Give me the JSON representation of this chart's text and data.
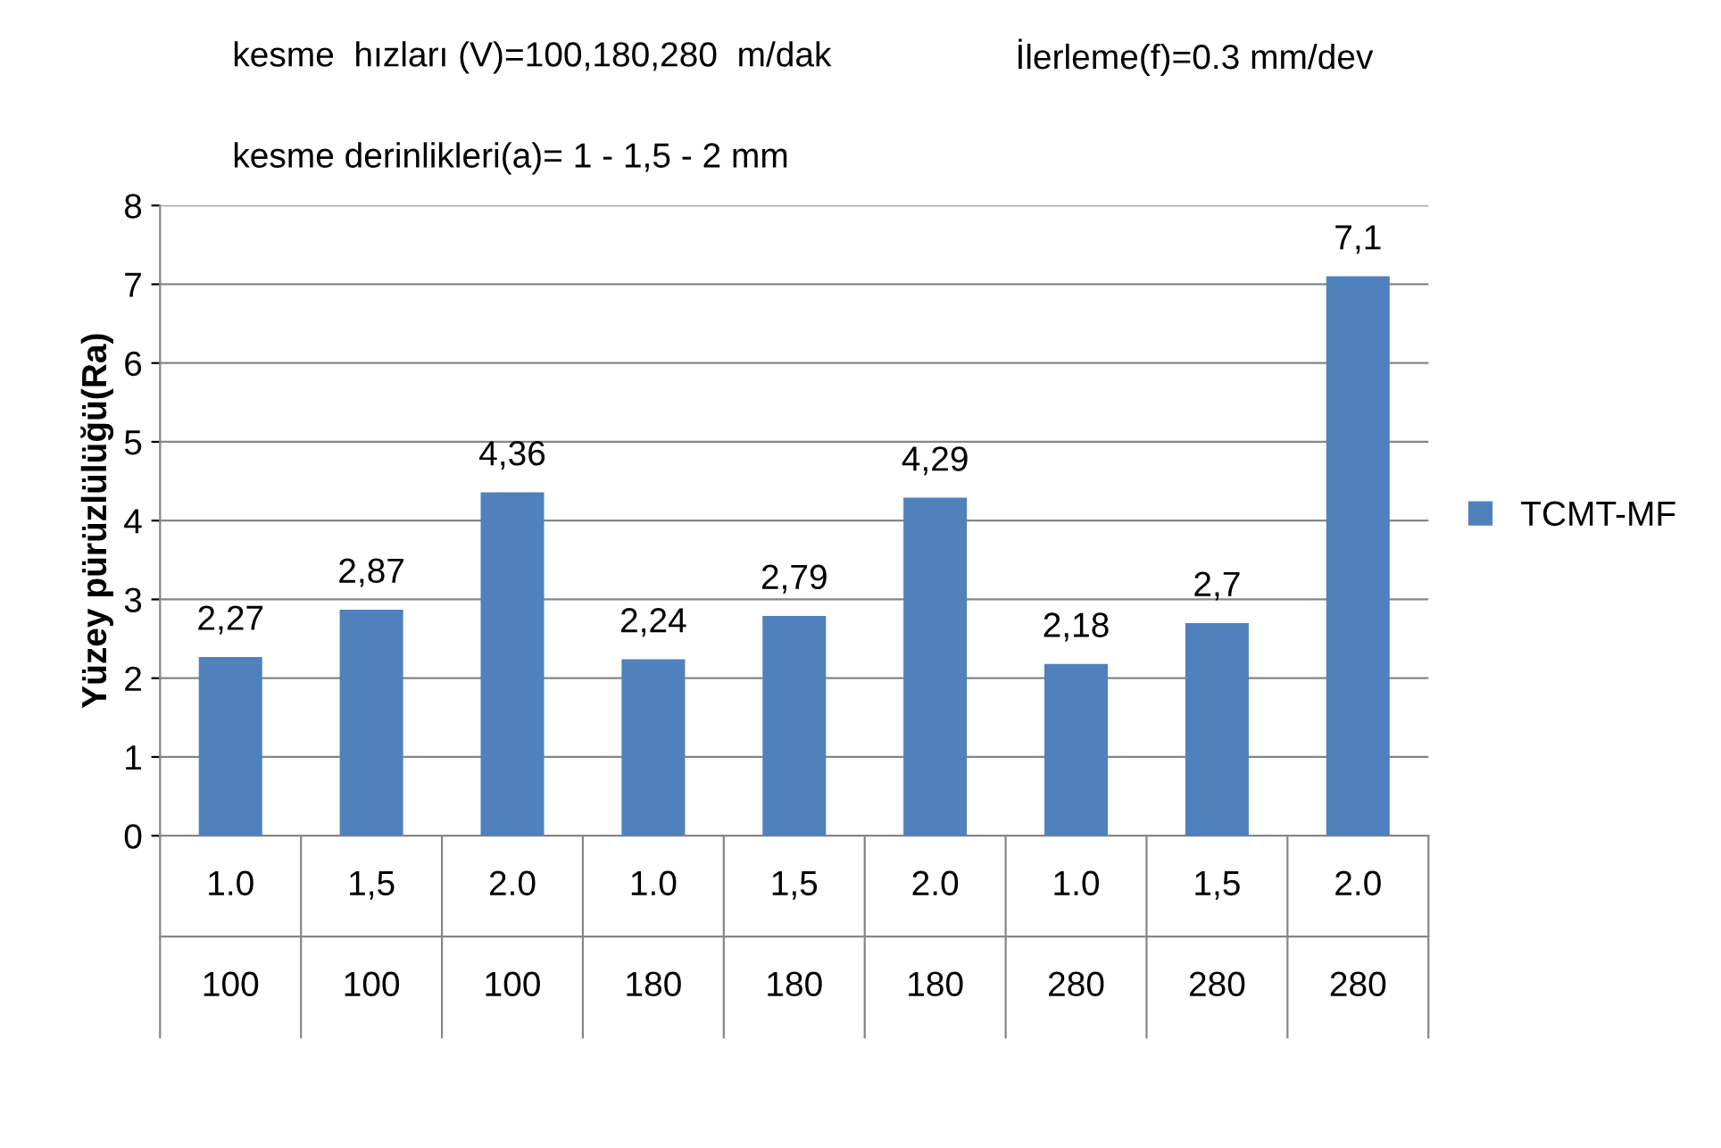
{
  "chart_data": {
    "type": "bar",
    "title": "kesme  hızları (V)=100,180,280  m/dak",
    "subtitle": "kesme derinlikleri(a)= 1 - 1,5 - 2 mm",
    "annotations": [
      "İlerleme(f)=0.3 mm/dev"
    ],
    "ylabel": "Yüzey pürüzlülüğü(Ra)",
    "categories": [
      "1.0\n100",
      "1,5\n100",
      "2.0\n100",
      "1.0\n180",
      "1,5\n180",
      "2.0\n180",
      "1.0\n280",
      "1,5\n280",
      "2.0\n280"
    ],
    "series": [
      {
        "name": "TCMT-MF",
        "color": "#4f81bd",
        "values": [
          2.27,
          2.87,
          4.36,
          2.24,
          2.79,
          4.29,
          2.18,
          2.7,
          7.1
        ],
        "value_labels": [
          "2,27",
          "2,87",
          "4,36",
          "2,24",
          "2,79",
          "4,29",
          "2,18",
          "2,7",
          "7,1"
        ]
      }
    ],
    "ylim": [
      0,
      8
    ],
    "yticks": [
      0,
      1,
      2,
      3,
      4,
      5,
      6,
      7,
      8
    ],
    "grid": "y",
    "legend": "right"
  }
}
